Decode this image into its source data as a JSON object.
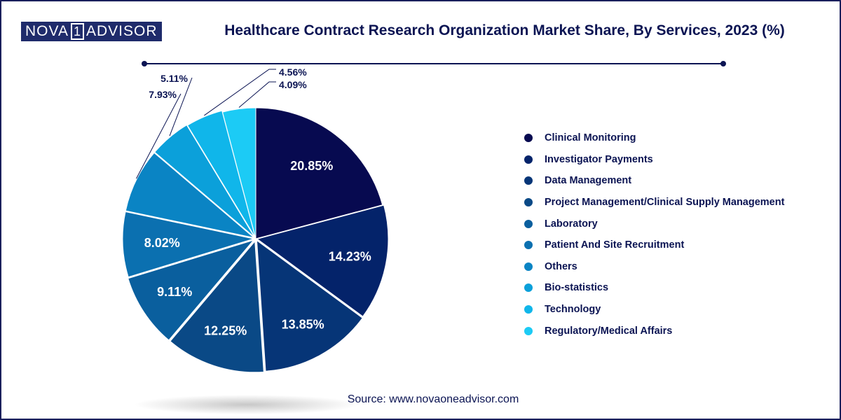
{
  "brand": {
    "left": "NOVA",
    "middle": "1",
    "right": "ADVISOR"
  },
  "source_text": "Source: www.novaoneadvisor.com",
  "colors": {
    "title": "#0b1453",
    "slices": [
      "#070a50",
      "#04236a",
      "#063577",
      "#0a4986",
      "#0a5f9e",
      "#0b70b0",
      "#0a84c4",
      "#0ba0da",
      "#10b6ea",
      "#1ccbf5"
    ]
  },
  "chart_data": {
    "type": "pie",
    "title": "Healthcare Contract Research Organization Market Share, By Services, 2023 (%)",
    "categories": [
      "Clinical Monitoring",
      "Investigator Payments",
      "Data Management",
      "Project Management/Clinical Supply Management",
      "Laboratory",
      "Patient And Site Recruitment",
      "Others",
      "Bio-statistics",
      "Technology",
      "Regulatory/Medical Affairs"
    ],
    "values": [
      20.85,
      14.23,
      13.85,
      12.25,
      9.11,
      8.02,
      7.93,
      5.11,
      4.56,
      4.09
    ],
    "labels": [
      "20.85%",
      "14.23%",
      "13.85%",
      "12.25%",
      "9.11%",
      "8.02%",
      "7.93%",
      "5.11%",
      "4.56%",
      "4.09%"
    ],
    "legend_position": "right"
  }
}
